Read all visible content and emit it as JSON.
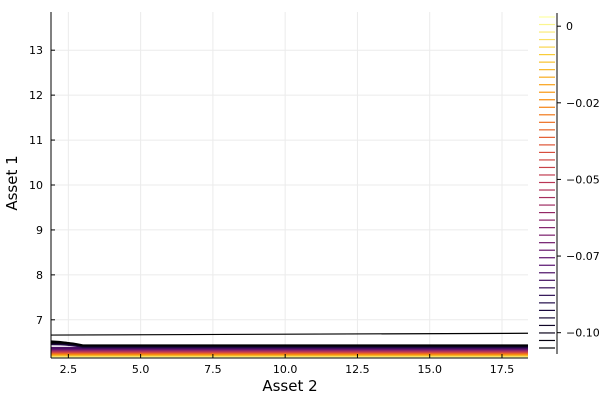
{
  "chart_data": {
    "type": "contour",
    "xlabel": "Asset 2",
    "ylabel": "Asset 1",
    "xlim": [
      1.9,
      18.4
    ],
    "ylim": [
      6.15,
      13.85
    ],
    "x_ticks": [
      2.5,
      5.0,
      7.5,
      10.0,
      12.5,
      15.0,
      17.5
    ],
    "x_tick_labels": [
      "2.5",
      "5.0",
      "7.5",
      "10.0",
      "12.5",
      "15.0",
      "17.5"
    ],
    "y_ticks": [
      7,
      8,
      9,
      10,
      11,
      12,
      13
    ],
    "y_tick_labels": [
      "7",
      "8",
      "9",
      "10",
      "11",
      "12",
      "13"
    ],
    "grid": true,
    "legend": "none",
    "colorbar": {
      "colormap": "inferno",
      "range": [
        -0.105,
        0.003
      ],
      "ticks": [
        0,
        -0.025,
        -0.05,
        -0.075,
        -0.1
      ],
      "tick_labels": [
        "0",
        "−0.02",
        "−0.05",
        "−0.07",
        "−0.10"
      ],
      "levels": 45,
      "placement": "right"
    },
    "contours": {
      "upper_line": {
        "color": "#000000",
        "x": [
          1.9,
          18.4
        ],
        "y": [
          6.66,
          6.7
        ]
      },
      "band": {
        "y_range": [
          6.18,
          6.43
        ],
        "colors_bottom_to_top": [
          "#fcffa4",
          "#f98c0a",
          "#bc3754",
          "#57106e",
          "#000004"
        ]
      }
    }
  }
}
